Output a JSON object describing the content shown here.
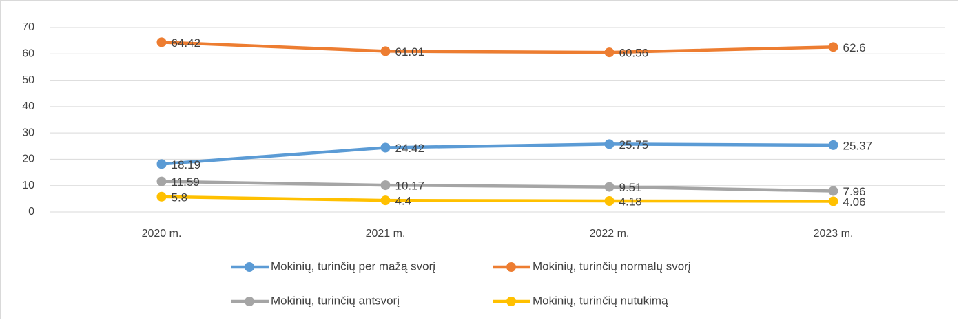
{
  "chart_data": {
    "type": "line",
    "categories": [
      "2020 m.",
      "2021 m.",
      "2022 m.",
      "2023 m."
    ],
    "series": [
      {
        "name": "Mokinių, turinčių per mažą svorį",
        "color": "#5b9bd5",
        "values": [
          18.19,
          24.42,
          25.75,
          25.37
        ]
      },
      {
        "name": "Mokinių, turinčių normalų svorį",
        "color": "#ed7d31",
        "values": [
          64.42,
          61.01,
          60.56,
          62.6
        ]
      },
      {
        "name": "Mokinių, turinčių antsvorį",
        "color": "#a5a5a5",
        "values": [
          11.59,
          10.17,
          9.51,
          7.96
        ]
      },
      {
        "name": "Mokinių, turinčių nutukimą",
        "color": "#ffc000",
        "values": [
          5.8,
          4.4,
          4.18,
          4.06
        ]
      }
    ],
    "ylim": [
      0,
      70
    ],
    "yticks": [
      0,
      10,
      20,
      30,
      40,
      50,
      60,
      70
    ],
    "grid": true,
    "legend": "bottom"
  }
}
